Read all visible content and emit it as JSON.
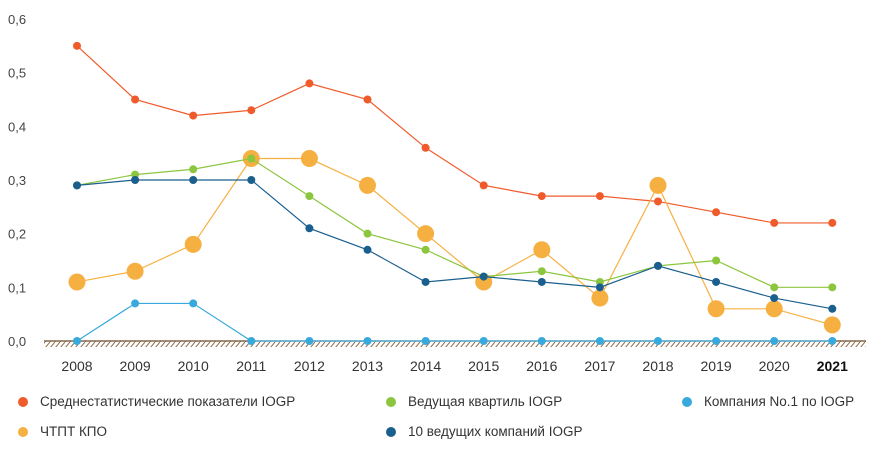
{
  "chart_data": {
    "type": "line",
    "x": [
      "2008",
      "2009",
      "2010",
      "2011",
      "2012",
      "2013",
      "2014",
      "2015",
      "2016",
      "2017",
      "2018",
      "2019",
      "2020",
      "2021"
    ],
    "bold_x": "2021",
    "ylim": [
      0,
      0.6
    ],
    "yticks": [
      "0,0",
      "0,1",
      "0,2",
      "0,3",
      "0,4",
      "0,5",
      "0,6"
    ],
    "ytick_values": [
      0,
      0.1,
      0.2,
      0.3,
      0.4,
      0.5,
      0.6
    ],
    "grid": false,
    "legend_position": "bottom",
    "series": [
      {
        "name": "Среднестатистические показатели IOGP",
        "color": "#ef5b2b",
        "marker": "small",
        "values": [
          0.55,
          0.45,
          0.42,
          0.43,
          0.48,
          0.45,
          0.36,
          0.29,
          0.27,
          0.27,
          0.26,
          0.24,
          0.22,
          0.22
        ]
      },
      {
        "name": "Ведущая квартиль IOGP",
        "color": "#8cc63f",
        "marker": "small",
        "values": [
          0.29,
          0.31,
          0.32,
          0.34,
          0.27,
          0.2,
          0.17,
          0.12,
          0.13,
          0.11,
          0.14,
          0.15,
          0.1,
          0.1
        ]
      },
      {
        "name": "Компания No.1  по IOGP",
        "color": "#38a9dc",
        "marker": "small",
        "values": [
          0.0,
          0.07,
          0.07,
          0.0,
          0.0,
          0.0,
          0.0,
          0.0,
          0.0,
          0.0,
          0.0,
          0.0,
          0.0,
          0.0
        ]
      },
      {
        "name": "ЧТПТ КПО",
        "color": "#f6b042",
        "marker": "large",
        "values": [
          0.11,
          0.13,
          0.18,
          0.34,
          0.34,
          0.29,
          0.2,
          0.11,
          0.17,
          0.08,
          0.29,
          0.06,
          0.06,
          0.03
        ]
      },
      {
        "name": "10 ведущих компаний IOGP",
        "color": "#1a5f8e",
        "marker": "small",
        "values": [
          0.29,
          0.3,
          0.3,
          0.3,
          0.21,
          0.17,
          0.11,
          0.12,
          0.11,
          0.1,
          0.14,
          0.11,
          0.08,
          0.06
        ]
      }
    ]
  },
  "legend": {
    "items": [
      {
        "label": "Среднестатистические показатели IOGP",
        "color": "#ef5b2b"
      },
      {
        "label": "Ведущая квартиль IOGP",
        "color": "#8cc63f"
      },
      {
        "label": "Компания No.1  по IOGP",
        "color": "#38a9dc"
      },
      {
        "label": "ЧТПТ КПО",
        "color": "#f6b042"
      },
      {
        "label": "10 ведущих компаний IOGP",
        "color": "#1a5f8e"
      }
    ]
  }
}
